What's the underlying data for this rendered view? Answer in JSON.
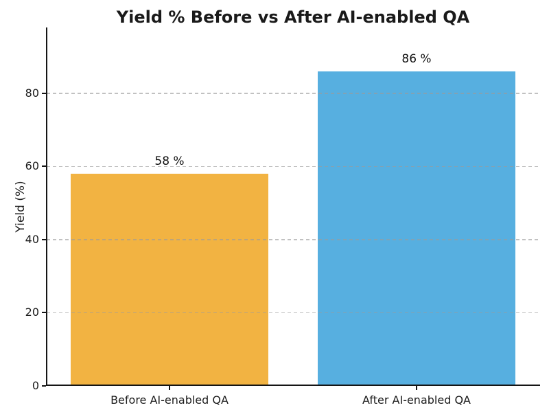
{
  "chart_data": {
    "type": "bar",
    "title": "Yield % Before vs After AI-enabled QA",
    "categories": [
      "Before AI-enabled QA",
      "After AI-enabled QA"
    ],
    "values": [
      58,
      86
    ],
    "bar_labels": [
      "58 %",
      "86 %"
    ],
    "bar_colors": [
      "#F2B342",
      "#57AFE0"
    ],
    "xlabel": "",
    "ylabel": "Yield (%)",
    "ylim": [
      0,
      98
    ],
    "yticks": [
      0,
      20,
      40,
      60,
      80
    ],
    "bar_width_fraction": 0.8,
    "grid": {
      "axis": "y",
      "style": "dashed",
      "color": "#c9c9c9",
      "above_bars": true
    },
    "legend_position": "none",
    "spines": {
      "top": false,
      "right": false,
      "left": true,
      "bottom": true
    }
  }
}
